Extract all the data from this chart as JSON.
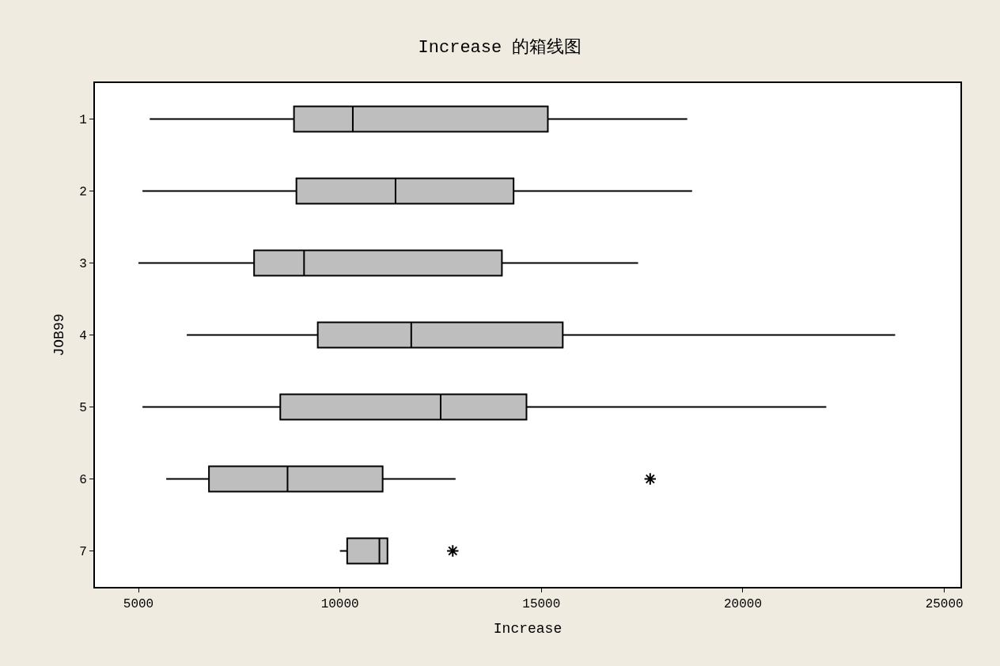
{
  "chart_data": {
    "type": "box",
    "title": "Increase 的箱线图",
    "xlabel": "Increase",
    "ylabel": "JOB99",
    "orientation": "horizontal",
    "categories": [
      "1",
      "2",
      "3",
      "4",
      "5",
      "6",
      "7"
    ],
    "boxes": [
      {
        "low": 5280,
        "q1": 8860,
        "median": 10320,
        "q3": 15160,
        "high": 18620
      },
      {
        "low": 5100,
        "q1": 8920,
        "median": 11380,
        "q3": 14310,
        "high": 18740
      },
      {
        "low": 5000,
        "q1": 7870,
        "median": 9110,
        "q3": 14020,
        "high": 17400
      },
      {
        "low": 6200,
        "q1": 9450,
        "median": 11770,
        "q3": 15530,
        "high": 23780
      },
      {
        "low": 5100,
        "q1": 8520,
        "median": 12500,
        "q3": 14630,
        "high": 22070
      },
      {
        "low": 5690,
        "q1": 6750,
        "median": 8700,
        "q3": 11060,
        "high": 12870,
        "outliers": [
          17700
        ]
      },
      {
        "low": 10000,
        "q1": 10180,
        "median": 10980,
        "q3": 11180,
        "high": 11180,
        "outliers": [
          12800
        ]
      }
    ],
    "color": "#bebebe",
    "xlim": [
      3920,
      25400
    ],
    "xticks": [
      5000,
      10000,
      15000,
      20000,
      25000
    ]
  }
}
